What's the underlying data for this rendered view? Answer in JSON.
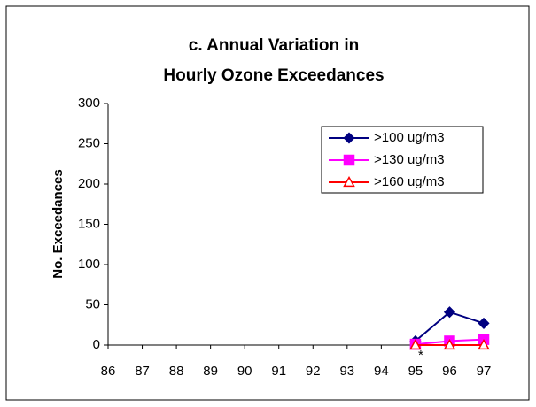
{
  "chart_data": {
    "type": "line",
    "title": [
      "c. Annual Variation in",
      "Hourly Ozone Exceedances"
    ],
    "y_label": "No. Exceedances",
    "annotation": "*",
    "categories": [
      "86",
      "87",
      "88",
      "89",
      "90",
      "91",
      "92",
      "93",
      "94",
      "95",
      "96",
      "97"
    ],
    "series": [
      {
        "name": ">100 ug/m3",
        "color": "#000080",
        "marker": "diamond",
        "values": [
          null,
          null,
          null,
          null,
          null,
          null,
          null,
          null,
          null,
          5,
          41,
          27
        ]
      },
      {
        "name": ">130 ug/m3",
        "color": "#ff00ff",
        "marker": "square",
        "values": [
          null,
          null,
          null,
          null,
          null,
          null,
          null,
          null,
          null,
          1,
          5,
          7
        ]
      },
      {
        "name": ">160 ug/m3",
        "color": "#ff0000",
        "marker": "triangle-open",
        "values": [
          null,
          null,
          null,
          null,
          null,
          null,
          null,
          null,
          null,
          0,
          0,
          0
        ]
      }
    ],
    "ylim": [
      0,
      300
    ],
    "yticks": [
      0,
      50,
      100,
      150,
      200,
      250,
      300
    ],
    "grid": false,
    "legend": "upper right"
  }
}
